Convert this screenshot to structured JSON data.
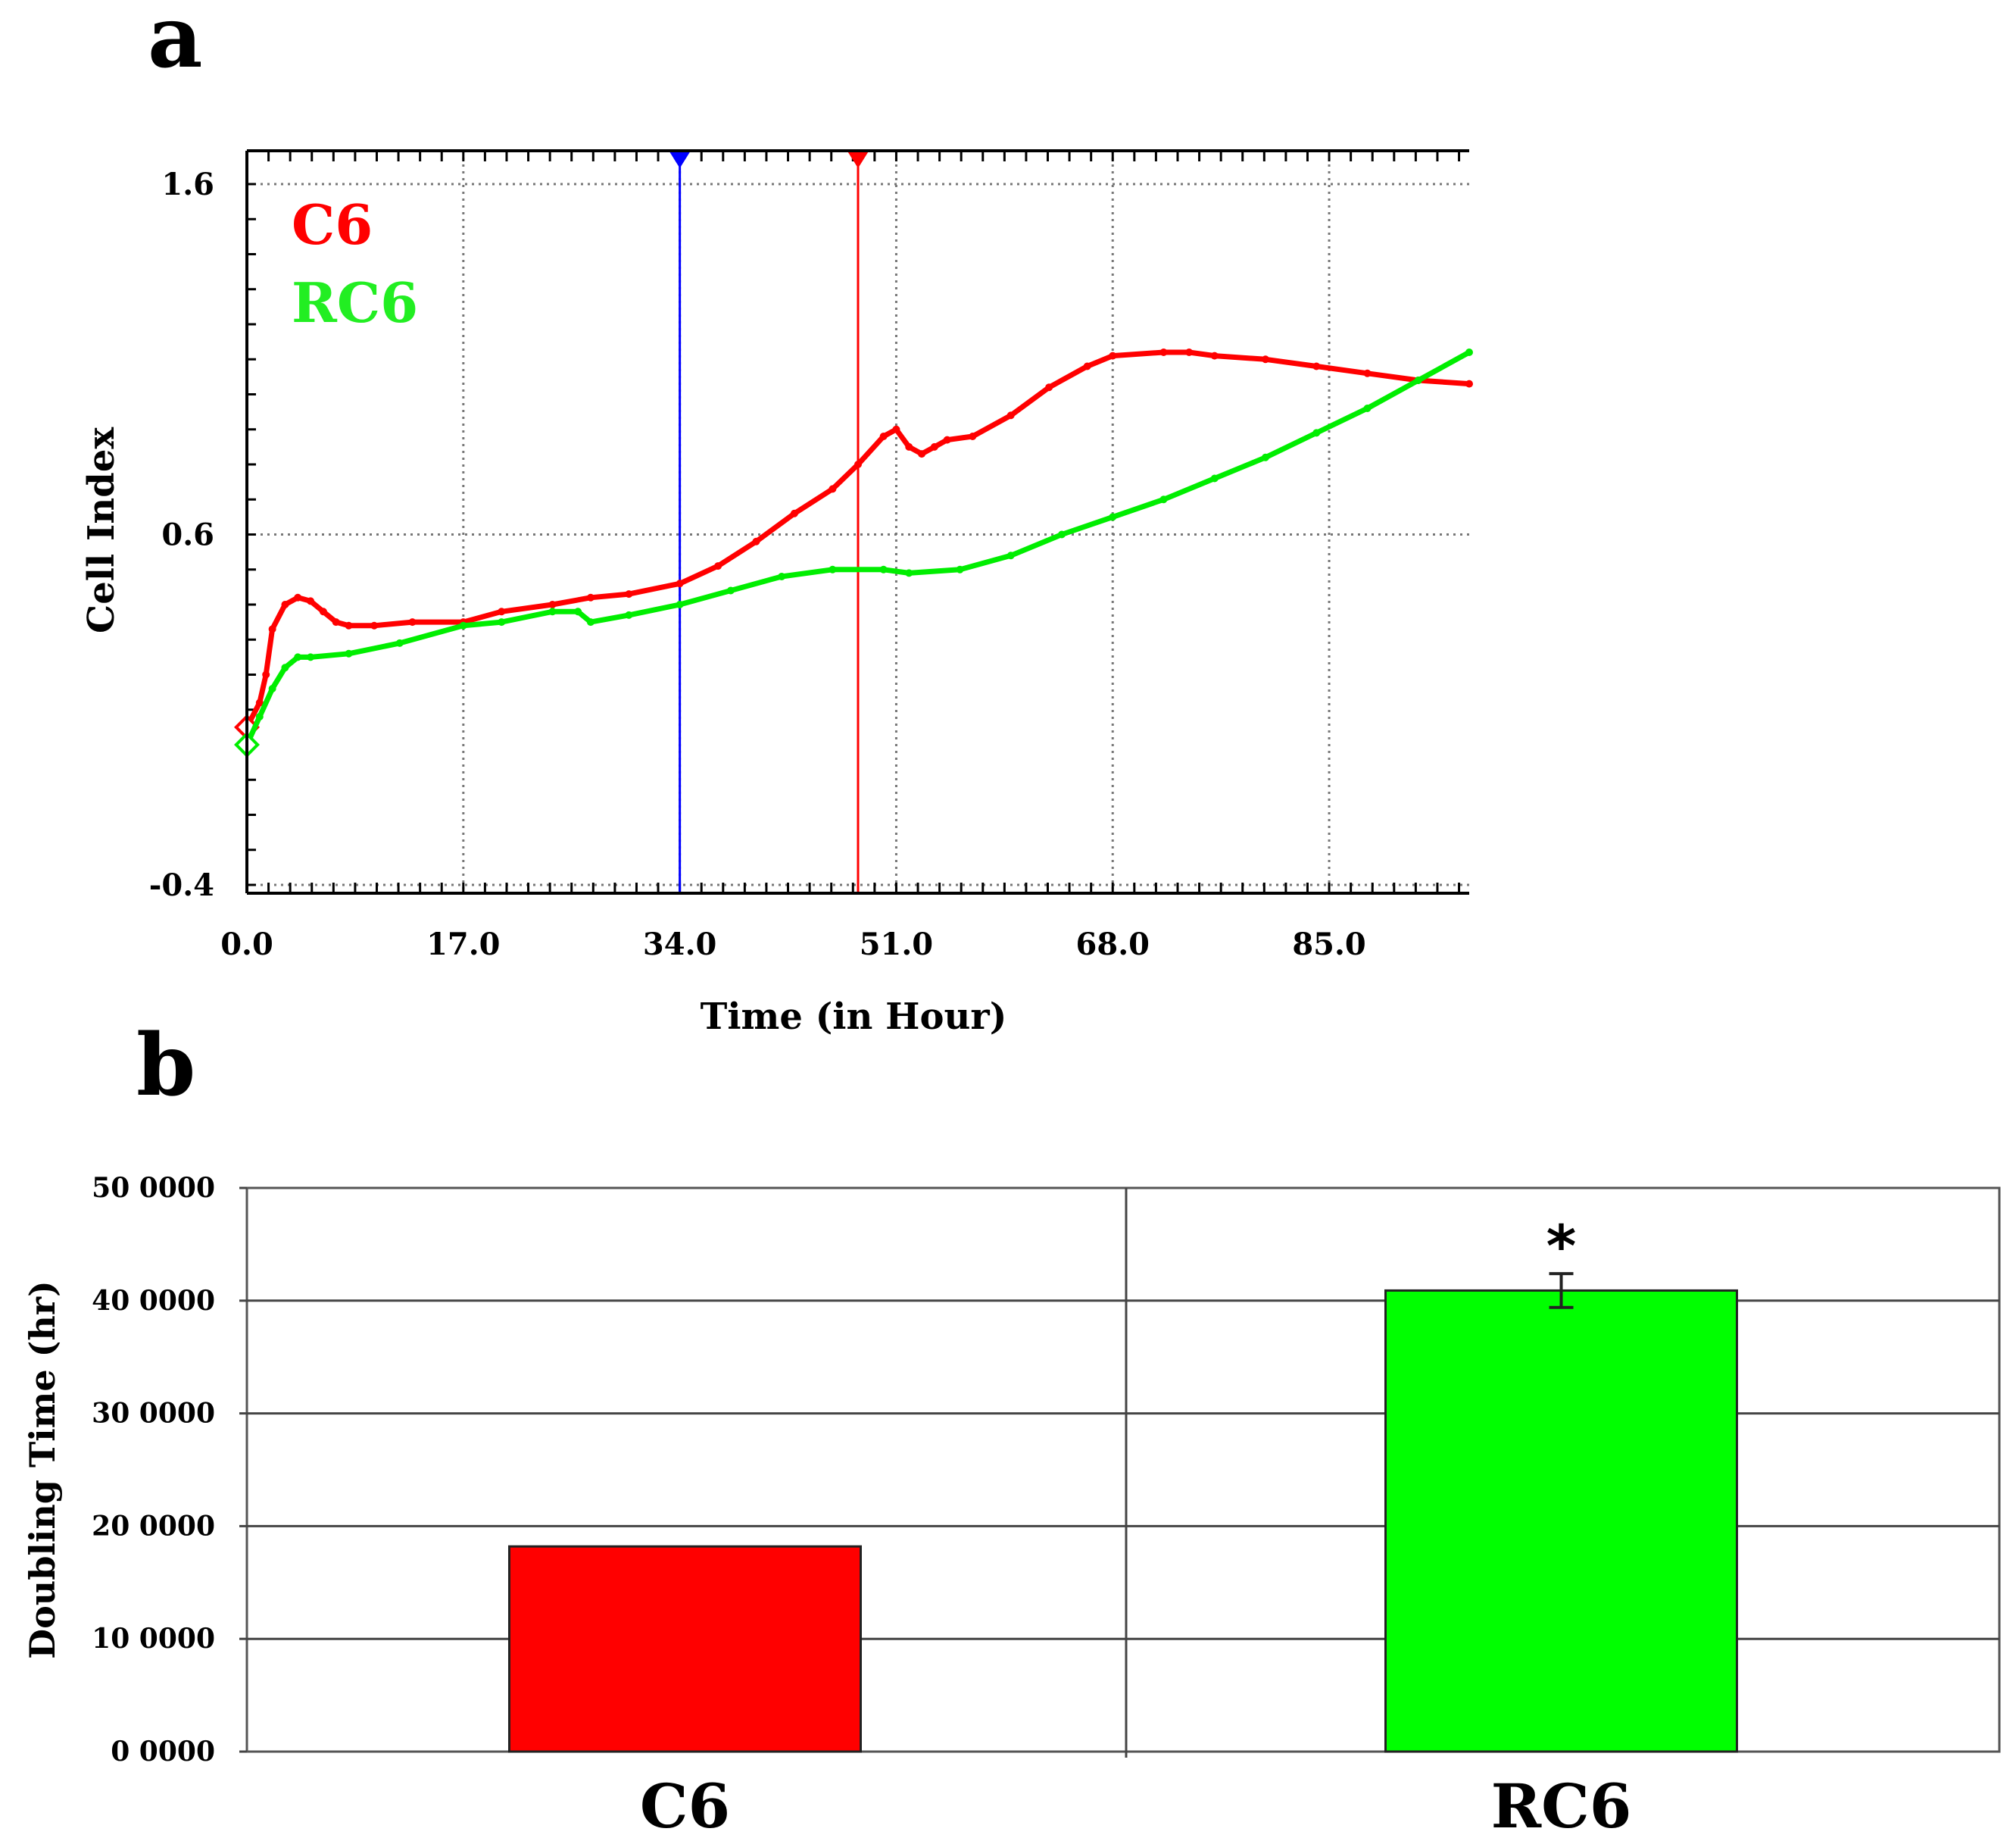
{
  "panels": {
    "a_label": "a",
    "b_label": "b"
  },
  "chart_data": [
    {
      "type": "line",
      "title": "",
      "xlabel": "Time (in Hour)",
      "ylabel": "Cell Index",
      "xlim": [
        0,
        96
      ],
      "ylim": [
        -0.4,
        1.6
      ],
      "x_ticks": [
        0,
        17,
        34,
        51,
        68,
        85
      ],
      "x_tick_labels": [
        "0.0",
        "17.0",
        "34.0",
        "51.0",
        "68.0",
        "85.0"
      ],
      "y_ticks": [
        -0.4,
        0.6,
        1.6
      ],
      "y_tick_labels": [
        "-0.4",
        "0.6",
        "1.6"
      ],
      "grid": true,
      "legend_position": "top-left",
      "markers": [
        {
          "x": 34,
          "color": "#0000ff"
        },
        {
          "x": 48,
          "color": "#ff0000"
        }
      ],
      "series": [
        {
          "name": "C6",
          "color": "#ff0000",
          "x": [
            0,
            1,
            1.5,
            2,
            3,
            4,
            5,
            6,
            7,
            8,
            10,
            13,
            17,
            20,
            24,
            27,
            30,
            34,
            37,
            40,
            43,
            46,
            48,
            50,
            51,
            52,
            53,
            54,
            55,
            57,
            60,
            63,
            66,
            68,
            72,
            74,
            76,
            80,
            84,
            88,
            92,
            96
          ],
          "y": [
            0.05,
            0.12,
            0.2,
            0.33,
            0.4,
            0.42,
            0.41,
            0.38,
            0.35,
            0.34,
            0.34,
            0.35,
            0.35,
            0.38,
            0.4,
            0.42,
            0.43,
            0.46,
            0.51,
            0.58,
            0.66,
            0.73,
            0.8,
            0.88,
            0.9,
            0.85,
            0.83,
            0.85,
            0.87,
            0.88,
            0.94,
            1.02,
            1.08,
            1.11,
            1.12,
            1.12,
            1.11,
            1.1,
            1.08,
            1.06,
            1.04,
            1.03
          ]
        },
        {
          "name": "RC6",
          "color": "#00ee00",
          "x": [
            0,
            1,
            2,
            3,
            4,
            5,
            8,
            12,
            17,
            20,
            24,
            26,
            27,
            30,
            34,
            38,
            42,
            46,
            50,
            52,
            56,
            60,
            64,
            68,
            72,
            76,
            80,
            84,
            88,
            92,
            96
          ],
          "y": [
            0.0,
            0.08,
            0.16,
            0.22,
            0.25,
            0.25,
            0.26,
            0.29,
            0.34,
            0.35,
            0.38,
            0.38,
            0.35,
            0.37,
            0.4,
            0.44,
            0.48,
            0.5,
            0.5,
            0.49,
            0.5,
            0.54,
            0.6,
            0.65,
            0.7,
            0.76,
            0.82,
            0.89,
            0.96,
            1.04,
            1.12
          ]
        }
      ]
    },
    {
      "type": "bar",
      "title": "",
      "xlabel": "",
      "ylabel": "Doubling Time (hr)",
      "ylim": [
        0,
        50
      ],
      "y_ticks": [
        0,
        10,
        20,
        30,
        40,
        50
      ],
      "y_tick_labels": [
        "0 0000",
        "10 0000",
        "20 0000",
        "30 0000",
        "40 0000",
        "50 0000"
      ],
      "grid": true,
      "categories": [
        "C6",
        "RC6"
      ],
      "values": [
        18.2,
        40.9
      ],
      "errors": [
        0,
        1.5
      ],
      "colors": [
        "#ff0000",
        "#00ff00"
      ],
      "annotations": [
        {
          "category": "RC6",
          "text": "*"
        }
      ]
    }
  ]
}
